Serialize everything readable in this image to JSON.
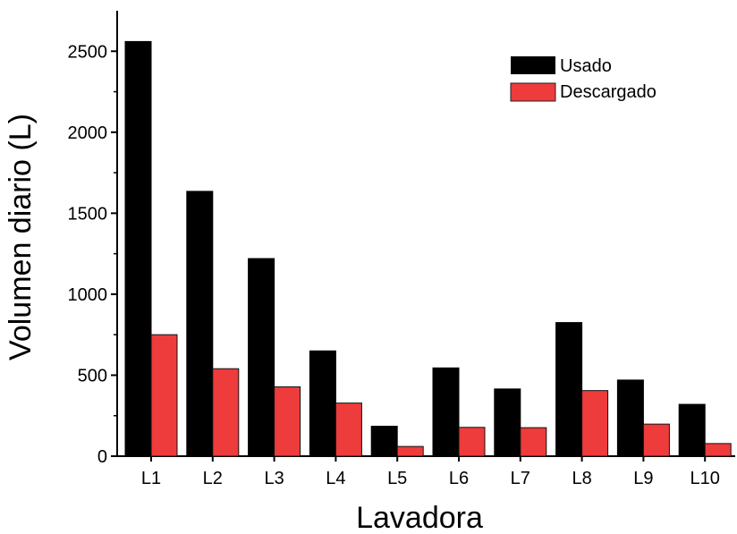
{
  "chart_data": {
    "type": "bar",
    "title": "",
    "xlabel": "Lavadora",
    "ylabel": "Volumen diario (L)",
    "categories": [
      "L1",
      "L2",
      "L3",
      "L4",
      "L5",
      "L6",
      "L7",
      "L8",
      "L9",
      "L10"
    ],
    "series": [
      {
        "name": "Usado",
        "color": "#000000",
        "values": [
          2560,
          1635,
          1220,
          650,
          185,
          545,
          415,
          825,
          470,
          320
        ]
      },
      {
        "name": "Descargado",
        "color": "#ee3b3b",
        "values": [
          750,
          540,
          428,
          328,
          60,
          178,
          176,
          405,
          198,
          78
        ]
      }
    ],
    "ylim": [
      0,
      2750
    ],
    "yticks": [
      0,
      500,
      1000,
      1500,
      2000,
      2500
    ],
    "legend_position": "top-right",
    "grid": false
  }
}
